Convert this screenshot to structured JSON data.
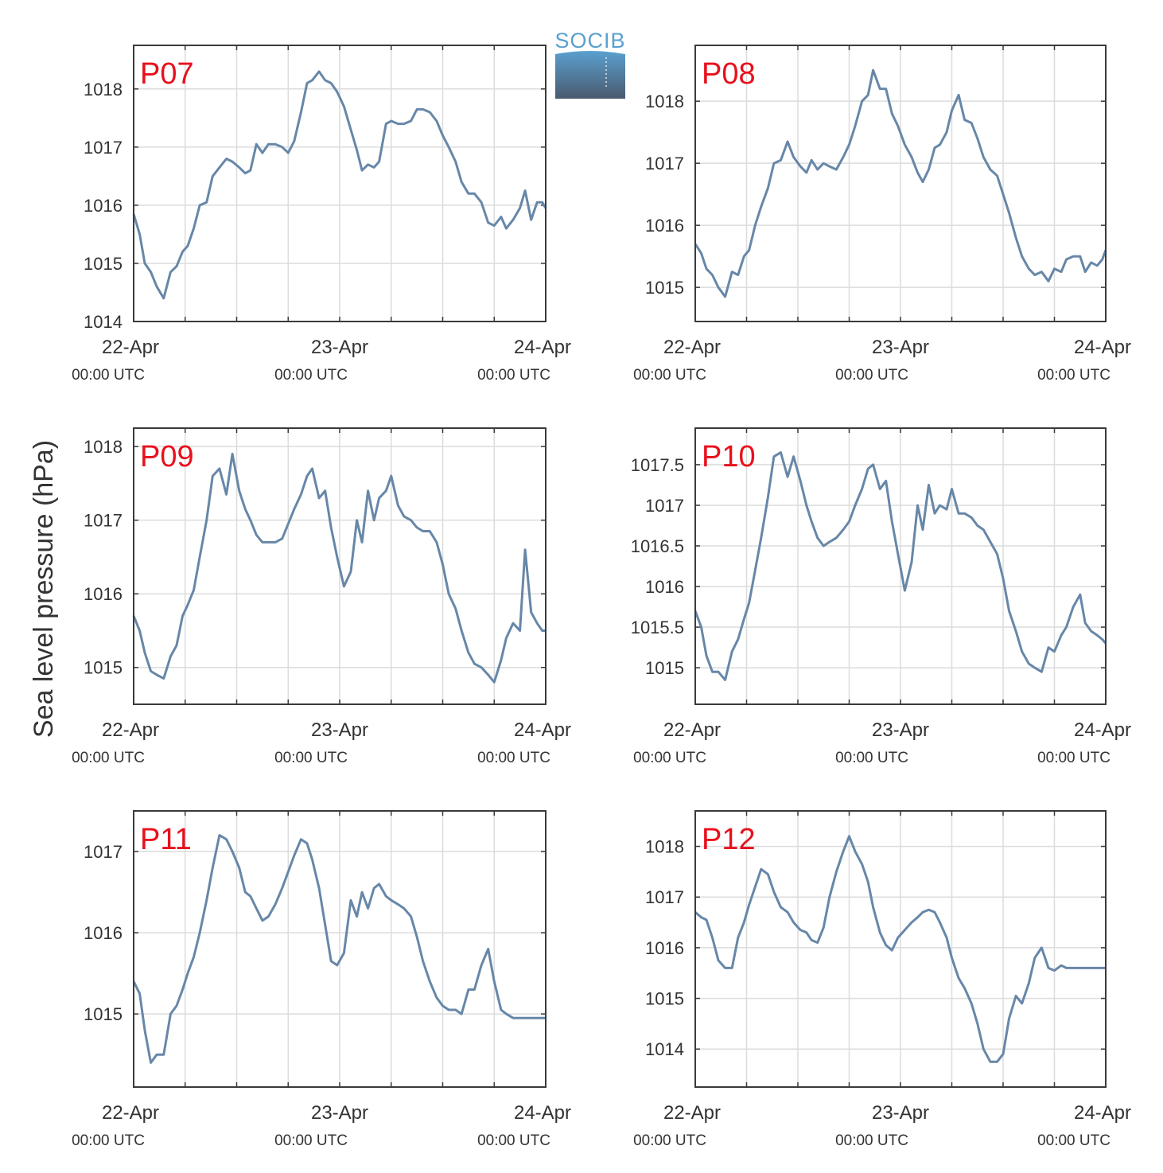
{
  "figure": {
    "ylabel": "Sea level pressure (hPa)",
    "logo_text": "SOCIB"
  },
  "style": {
    "line_color": "#6787a8",
    "station_label_color": "#e8101c",
    "grid_color": "#dcdcdc",
    "axis_color": "#3a3a3a",
    "logo_text_color": "#5aa0cf",
    "logo_gradient_top": "#5aa0cf",
    "logo_gradient_bottom": "#4a5a6e"
  },
  "x_ticks": [
    {
      "label": "22-Apr",
      "sublabel": "00:00 UTC"
    },
    {
      "label": "23-Apr",
      "sublabel": "00:00 UTC"
    },
    {
      "label": "24-Apr",
      "sublabel": "00:00 UTC"
    }
  ],
  "chart_data": [
    {
      "type": "line",
      "title": "P07",
      "xlim": [
        0,
        48
      ],
      "ylim": [
        1014,
        1018.75
      ],
      "yticks": [
        1014,
        1015,
        1016,
        1017,
        1018
      ],
      "ytick_labels": [
        "1014",
        "1015",
        "1016",
        "1017",
        "1018"
      ],
      "x": [
        0,
        0.7,
        1.3,
        2,
        2.7,
        3.5,
        4.3,
        5,
        5.7,
        6.3,
        7,
        7.7,
        8.5,
        9.2,
        10,
        10.8,
        11.5,
        12.3,
        13,
        13.6,
        14.3,
        15,
        15.7,
        16.5,
        17.3,
        18,
        18.7,
        19.5,
        20.2,
        20.8,
        21.6,
        22.3,
        23,
        23.7,
        24.5,
        25.3,
        26,
        26.6,
        27.3,
        28,
        28.6,
        29.4,
        30,
        30.8,
        31.5,
        32.3,
        33,
        33.7,
        34.5,
        35.3,
        36,
        36.7,
        37.5,
        38.2,
        39,
        39.7,
        40.5,
        41.3,
        42,
        42.8,
        43.4,
        44.2,
        45,
        45.6,
        46.3,
        47,
        47.6,
        48
      ],
      "y": [
        1015.85,
        1015.5,
        1015.0,
        1014.85,
        1014.6,
        1014.4,
        1014.85,
        1014.95,
        1015.2,
        1015.3,
        1015.6,
        1016.0,
        1016.05,
        1016.5,
        1016.65,
        1016.8,
        1016.75,
        1016.65,
        1016.55,
        1016.6,
        1017.05,
        1016.9,
        1017.05,
        1017.05,
        1017.0,
        1016.9,
        1017.1,
        1017.6,
        1018.1,
        1018.15,
        1018.3,
        1018.15,
        1018.1,
        1017.95,
        1017.7,
        1017.3,
        1016.95,
        1016.6,
        1016.7,
        1016.65,
        1016.75,
        1017.4,
        1017.45,
        1017.4,
        1017.4,
        1017.45,
        1017.65,
        1017.65,
        1017.6,
        1017.45,
        1017.2,
        1017.0,
        1016.75,
        1016.4,
        1016.2,
        1016.2,
        1016.05,
        1015.7,
        1015.65,
        1015.8,
        1015.6,
        1015.75,
        1015.95,
        1016.25,
        1015.75,
        1016.05,
        1016.05,
        1015.95
      ]
    },
    {
      "type": "line",
      "title": "P08",
      "xlim": [
        0,
        48
      ],
      "ylim": [
        1014.45,
        1018.9
      ],
      "yticks": [
        1015,
        1016,
        1017,
        1018
      ],
      "ytick_labels": [
        "1015",
        "1016",
        "1017",
        "1018"
      ],
      "x": [
        0,
        0.7,
        1.3,
        2,
        2.7,
        3.5,
        4.3,
        5,
        5.7,
        6.3,
        7,
        7.7,
        8.5,
        9.2,
        10,
        10.8,
        11.5,
        12.3,
        13,
        13.6,
        14.3,
        15,
        15.7,
        16.5,
        17.3,
        18,
        18.7,
        19.5,
        20.2,
        20.8,
        21.6,
        22.3,
        23,
        23.7,
        24.5,
        25.3,
        26,
        26.6,
        27.3,
        28,
        28.6,
        29.4,
        30,
        30.8,
        31.5,
        32.3,
        33,
        33.7,
        34.5,
        35.3,
        36,
        36.7,
        37.5,
        38.2,
        39,
        39.7,
        40.5,
        41.3,
        42,
        42.8,
        43.4,
        44.2,
        45,
        45.6,
        46.3,
        47,
        47.6,
        48
      ],
      "y": [
        1015.7,
        1015.55,
        1015.3,
        1015.2,
        1015.0,
        1014.85,
        1015.25,
        1015.2,
        1015.5,
        1015.6,
        1016.0,
        1016.3,
        1016.6,
        1017.0,
        1017.05,
        1017.35,
        1017.1,
        1016.95,
        1016.85,
        1017.05,
        1016.9,
        1017.0,
        1016.95,
        1016.9,
        1017.1,
        1017.3,
        1017.6,
        1018.0,
        1018.1,
        1018.5,
        1018.2,
        1018.2,
        1017.8,
        1017.6,
        1017.3,
        1017.1,
        1016.85,
        1016.7,
        1016.9,
        1017.25,
        1017.3,
        1017.5,
        1017.85,
        1018.1,
        1017.7,
        1017.65,
        1017.4,
        1017.1,
        1016.9,
        1016.8,
        1016.5,
        1016.2,
        1015.8,
        1015.5,
        1015.3,
        1015.2,
        1015.25,
        1015.1,
        1015.3,
        1015.25,
        1015.45,
        1015.5,
        1015.5,
        1015.25,
        1015.4,
        1015.35,
        1015.45,
        1015.6
      ]
    },
    {
      "type": "line",
      "title": "P09",
      "xlim": [
        0,
        48
      ],
      "ylim": [
        1014.5,
        1018.25
      ],
      "yticks": [
        1015,
        1016,
        1017,
        1018
      ],
      "ytick_labels": [
        "1015",
        "1016",
        "1017",
        "1018"
      ],
      "x": [
        0,
        0.7,
        1.3,
        2,
        2.7,
        3.5,
        4.3,
        5,
        5.7,
        6.3,
        7,
        7.7,
        8.5,
        9.2,
        10,
        10.8,
        11.5,
        12.3,
        13,
        13.6,
        14.3,
        15,
        15.7,
        16.5,
        17.3,
        18,
        18.7,
        19.5,
        20.2,
        20.8,
        21.6,
        22.3,
        23,
        23.7,
        24.5,
        25.3,
        26,
        26.6,
        27.3,
        28,
        28.6,
        29.4,
        30,
        30.8,
        31.5,
        32.3,
        33,
        33.7,
        34.5,
        35.3,
        36,
        36.7,
        37.5,
        38.2,
        39,
        39.7,
        40.5,
        41.3,
        42,
        42.8,
        43.4,
        44.2,
        45,
        45.6,
        46.3,
        47,
        47.6,
        48
      ],
      "y": [
        1015.7,
        1015.5,
        1015.2,
        1014.95,
        1014.9,
        1014.85,
        1015.15,
        1015.3,
        1015.7,
        1015.85,
        1016.05,
        1016.5,
        1017.0,
        1017.6,
        1017.7,
        1017.35,
        1017.9,
        1017.4,
        1017.15,
        1017.0,
        1016.8,
        1016.7,
        1016.7,
        1016.7,
        1016.75,
        1016.95,
        1017.15,
        1017.35,
        1017.6,
        1017.7,
        1017.3,
        1017.4,
        1016.9,
        1016.5,
        1016.1,
        1016.3,
        1017.0,
        1016.7,
        1017.4,
        1017.0,
        1017.3,
        1017.4,
        1017.6,
        1017.2,
        1017.05,
        1017.0,
        1016.9,
        1016.85,
        1016.85,
        1016.7,
        1016.4,
        1016.0,
        1015.8,
        1015.5,
        1015.2,
        1015.05,
        1015.0,
        1014.9,
        1014.8,
        1015.1,
        1015.4,
        1015.6,
        1015.5,
        1016.6,
        1015.75,
        1015.6,
        1015.5,
        1015.5
      ]
    },
    {
      "type": "line",
      "title": "P10",
      "xlim": [
        0,
        48
      ],
      "ylim": [
        1014.55,
        1017.95
      ],
      "yticks": [
        1015,
        1015.5,
        1016,
        1016.5,
        1017,
        1017.5
      ],
      "ytick_labels": [
        "1015",
        "1015.5",
        "1016",
        "1016.5",
        "1017",
        "1017.5"
      ],
      "x": [
        0,
        0.7,
        1.3,
        2,
        2.7,
        3.5,
        4.3,
        5,
        5.7,
        6.3,
        7,
        7.7,
        8.5,
        9.2,
        10,
        10.8,
        11.5,
        12.3,
        13,
        13.6,
        14.3,
        15,
        15.7,
        16.5,
        17.3,
        18,
        18.7,
        19.5,
        20.2,
        20.8,
        21.6,
        22.3,
        23,
        23.7,
        24.5,
        25.3,
        26,
        26.6,
        27.3,
        28,
        28.6,
        29.4,
        30,
        30.8,
        31.5,
        32.3,
        33,
        33.7,
        34.5,
        35.3,
        36,
        36.7,
        37.5,
        38.2,
        39,
        39.7,
        40.5,
        41.3,
        42,
        42.8,
        43.4,
        44.2,
        45,
        45.6,
        46.3,
        47,
        47.6,
        48
      ],
      "y": [
        1015.7,
        1015.5,
        1015.15,
        1014.95,
        1014.95,
        1014.85,
        1015.2,
        1015.35,
        1015.6,
        1015.8,
        1016.2,
        1016.6,
        1017.1,
        1017.6,
        1017.65,
        1017.35,
        1017.6,
        1017.3,
        1017.0,
        1016.8,
        1016.6,
        1016.5,
        1016.55,
        1016.6,
        1016.7,
        1016.8,
        1017.0,
        1017.2,
        1017.45,
        1017.5,
        1017.2,
        1017.3,
        1016.8,
        1016.4,
        1015.95,
        1016.3,
        1017.0,
        1016.7,
        1017.25,
        1016.9,
        1017.0,
        1016.95,
        1017.2,
        1016.9,
        1016.9,
        1016.85,
        1016.75,
        1016.7,
        1016.55,
        1016.4,
        1016.1,
        1015.7,
        1015.45,
        1015.2,
        1015.05,
        1015.0,
        1014.95,
        1015.25,
        1015.2,
        1015.4,
        1015.5,
        1015.75,
        1015.9,
        1015.55,
        1015.45,
        1015.4,
        1015.35,
        1015.3
      ]
    },
    {
      "type": "line",
      "title": "P11",
      "xlim": [
        0,
        48
      ],
      "ylim": [
        1014.1,
        1017.5
      ],
      "yticks": [
        1015,
        1016,
        1017
      ],
      "ytick_labels": [
        "1015",
        "1016",
        "1017"
      ],
      "x": [
        0,
        0.7,
        1.3,
        2,
        2.7,
        3.5,
        4.3,
        5,
        5.7,
        6.3,
        7,
        7.7,
        8.5,
        9.2,
        10,
        10.8,
        11.5,
        12.3,
        13,
        13.6,
        14.3,
        15,
        15.7,
        16.5,
        17.3,
        18,
        18.7,
        19.5,
        20.2,
        20.8,
        21.6,
        22.3,
        23,
        23.7,
        24.5,
        25.3,
        26,
        26.6,
        27.3,
        28,
        28.6,
        29.4,
        30,
        30.8,
        31.5,
        32.3,
        33,
        33.7,
        34.5,
        35.3,
        36,
        36.7,
        37.5,
        38.2,
        39,
        39.7,
        40.5,
        41.3,
        42,
        42.8,
        43.4,
        44.2,
        45,
        45.6,
        46.3,
        47,
        47.6,
        48
      ],
      "y": [
        1015.4,
        1015.25,
        1014.8,
        1014.4,
        1014.5,
        1014.5,
        1015.0,
        1015.1,
        1015.3,
        1015.5,
        1015.7,
        1016.0,
        1016.4,
        1016.8,
        1017.2,
        1017.15,
        1017.0,
        1016.8,
        1016.5,
        1016.45,
        1016.3,
        1016.15,
        1016.2,
        1016.35,
        1016.55,
        1016.75,
        1016.95,
        1017.15,
        1017.1,
        1016.9,
        1016.55,
        1016.1,
        1015.65,
        1015.6,
        1015.75,
        1016.4,
        1016.2,
        1016.5,
        1016.3,
        1016.55,
        1016.6,
        1016.45,
        1016.4,
        1016.35,
        1016.3,
        1016.2,
        1015.95,
        1015.65,
        1015.4,
        1015.2,
        1015.1,
        1015.05,
        1015.05,
        1015.0,
        1015.3,
        1015.3,
        1015.6,
        1015.8,
        1015.4,
        1015.05,
        1015.0,
        1014.95,
        1014.95,
        1014.95,
        1014.95,
        1014.95,
        1014.95,
        1014.95
      ]
    },
    {
      "type": "line",
      "title": "P12",
      "xlim": [
        0,
        48
      ],
      "ylim": [
        1013.25,
        1018.7
      ],
      "yticks": [
        1014,
        1015,
        1016,
        1017,
        1018
      ],
      "ytick_labels": [
        "1014",
        "1015",
        "1016",
        "1017",
        "1018"
      ],
      "x": [
        0,
        0.7,
        1.3,
        2,
        2.7,
        3.5,
        4.3,
        5,
        5.7,
        6.3,
        7,
        7.7,
        8.5,
        9.2,
        10,
        10.8,
        11.5,
        12.3,
        13,
        13.6,
        14.3,
        15,
        15.7,
        16.5,
        17.3,
        18,
        18.7,
        19.5,
        20.2,
        20.8,
        21.6,
        22.3,
        23,
        23.7,
        24.5,
        25.3,
        26,
        26.6,
        27.3,
        28,
        28.6,
        29.4,
        30,
        30.8,
        31.5,
        32.3,
        33,
        33.7,
        34.5,
        35.3,
        36,
        36.7,
        37.5,
        38.2,
        39,
        39.7,
        40.5,
        41.3,
        42,
        42.8,
        43.4,
        44.2,
        45,
        45.6,
        46.3,
        47,
        47.6,
        48
      ],
      "y": [
        1016.7,
        1016.6,
        1016.55,
        1016.2,
        1015.75,
        1015.6,
        1015.6,
        1016.2,
        1016.5,
        1016.85,
        1017.2,
        1017.55,
        1017.45,
        1017.1,
        1016.8,
        1016.7,
        1016.5,
        1016.35,
        1016.3,
        1016.15,
        1016.1,
        1016.4,
        1017.0,
        1017.5,
        1017.9,
        1018.2,
        1017.9,
        1017.65,
        1017.3,
        1016.8,
        1016.3,
        1016.05,
        1015.95,
        1016.2,
        1016.35,
        1016.5,
        1016.6,
        1016.7,
        1016.75,
        1016.7,
        1016.5,
        1016.2,
        1015.8,
        1015.4,
        1015.2,
        1014.9,
        1014.5,
        1014.0,
        1013.75,
        1013.75,
        1013.9,
        1014.6,
        1015.05,
        1014.9,
        1015.3,
        1015.8,
        1016.0,
        1015.6,
        1015.55,
        1015.65,
        1015.6,
        1015.6,
        1015.6,
        1015.6,
        1015.6,
        1015.6,
        1015.6,
        1015.6
      ]
    }
  ]
}
